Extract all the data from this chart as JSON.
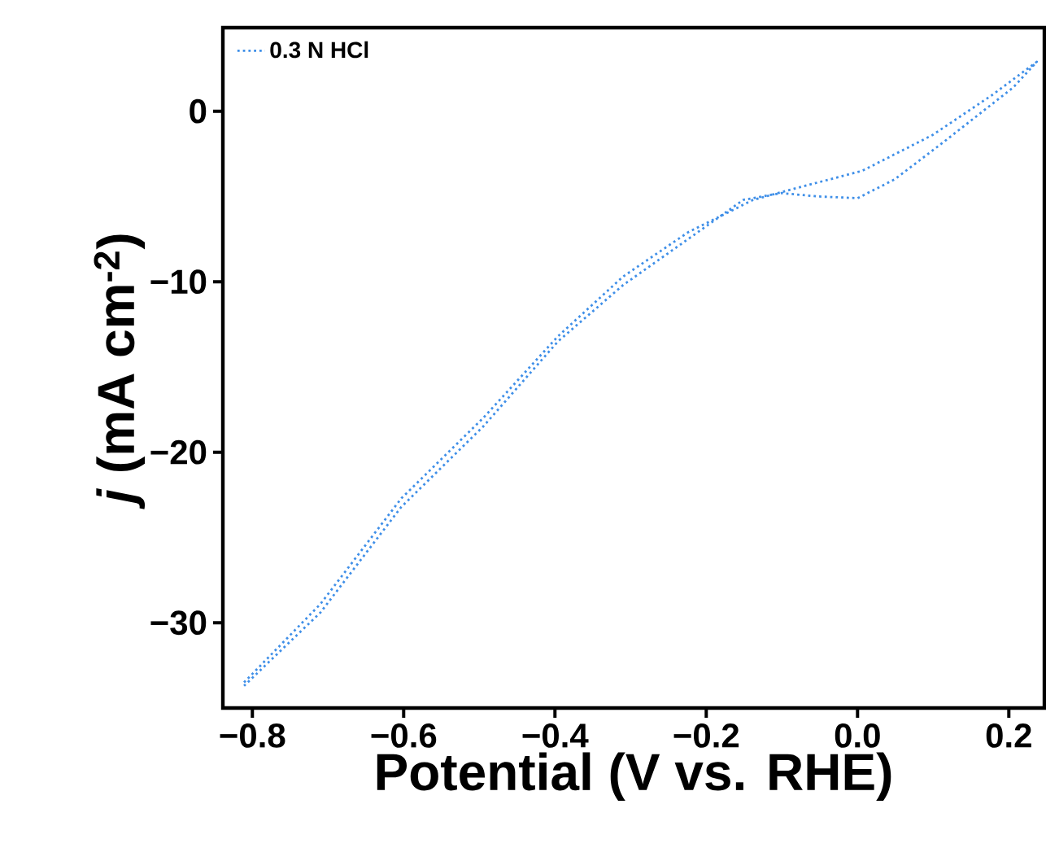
{
  "chart_data": {
    "type": "line",
    "xlabel": "Potential (V vs. RHE)",
    "ylabel": "*j* (mA cm$^{-2}$)",
    "xlim": [
      -0.839,
      0.247
    ],
    "ylim": [
      -35,
      4.9
    ],
    "xticks": [
      {
        "value": -0.8,
        "label": "−0.8"
      },
      {
        "value": -0.6,
        "label": "−0.6"
      },
      {
        "value": -0.4,
        "label": "−0.4"
      },
      {
        "value": -0.2,
        "label": "−0.2"
      },
      {
        "value": 0.0,
        "label": "0.0"
      },
      {
        "value": 0.2,
        "label": "0.2"
      }
    ],
    "yticks": [
      {
        "value": 0,
        "label": "0"
      },
      {
        "value": -10,
        "label": "−10"
      },
      {
        "value": -20,
        "label": "−20"
      },
      {
        "value": -30,
        "label": "−30"
      }
    ],
    "legend": "top left",
    "line_style": "dotted",
    "marker": "none",
    "grid": false,
    "series": [
      {
        "name": "0.3 N HCl",
        "color": "#3f8fe8",
        "x": [
          -0.811,
          -0.71,
          -0.603,
          -0.495,
          -0.396,
          -0.31,
          -0.224,
          -0.138,
          -0.08,
          0.006,
          0.099,
          0.178,
          0.237,
          0.206,
          0.114,
          0.049,
          0.0,
          -0.052,
          -0.101,
          -0.151,
          -0.224,
          -0.31,
          -0.396,
          -0.495,
          -0.603,
          -0.71,
          -0.811
        ],
        "values": [
          -33.5,
          -28.9,
          -22.7,
          -18.0,
          -13.2,
          -9.7,
          -7.1,
          -5.2,
          -4.5,
          -3.5,
          -1.4,
          0.95,
          2.9,
          1.4,
          -1.8,
          -4.0,
          -5.1,
          -5.0,
          -4.8,
          -5.2,
          -7.5,
          -10.2,
          -13.5,
          -18.5,
          -23.2,
          -29.4,
          -33.7
        ]
      }
    ]
  }
}
